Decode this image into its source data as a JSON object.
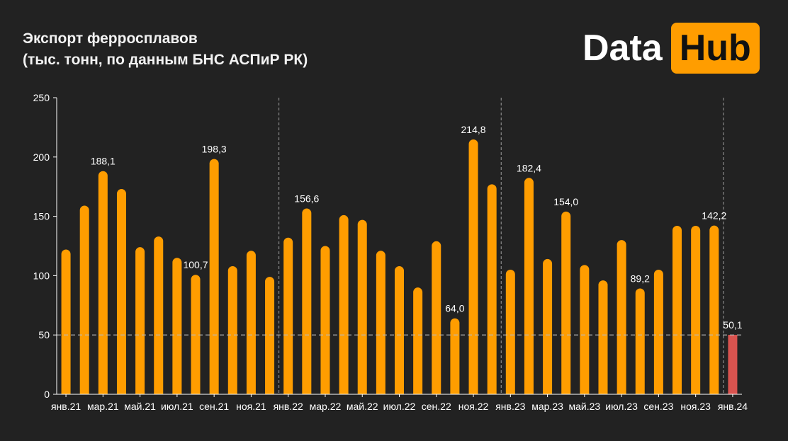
{
  "title_line1": "Экспорт ферросплавов",
  "title_line2": "(тыс.  тонн, по данным БНС АСПиР РК)",
  "logo": {
    "word": "Data",
    "box": "Hub"
  },
  "colors": {
    "background": "#222222",
    "bar": "#ff9d00",
    "highlight_bar": "#d9534f",
    "reference_line": "#bbbbbb",
    "text": "#ffffff",
    "axis": "#ffffff",
    "brand": "#ff9d00"
  },
  "chart_data": {
    "type": "bar",
    "title": "Экспорт ферросплавов",
    "subtitle": "(тыс.  тонн, по данным БНС АСПиР РК)",
    "ylim": [
      0,
      250
    ],
    "yticks": [
      0,
      50,
      100,
      150,
      200,
      250
    ],
    "grid": false,
    "reference_line": 50,
    "year_separators_before": [
      "янв.22",
      "янв.23",
      "янв.24"
    ],
    "categories": [
      "янв.21",
      "фев.21",
      "мар.21",
      "апр.21",
      "май.21",
      "июн.21",
      "июл.21",
      "авг.21",
      "сен.21",
      "окт.21",
      "ноя.21",
      "дек.21",
      "янв.22",
      "фев.22",
      "мар.22",
      "апр.22",
      "май.22",
      "июн.22",
      "июл.22",
      "авг.22",
      "сен.22",
      "окт.22",
      "ноя.22",
      "дек.22",
      "янв.23",
      "фев.23",
      "мар.23",
      "апр.23",
      "май.23",
      "июн.23",
      "июл.23",
      "авг.23",
      "сен.23",
      "окт.23",
      "ноя.23",
      "дек.23",
      "янв.24"
    ],
    "x_tick_labels": [
      "янв.21",
      "мар.21",
      "май.21",
      "июл.21",
      "сен.21",
      "ноя.21",
      "янв.22",
      "мар.22",
      "май.22",
      "июл.22",
      "сен.22",
      "ноя.22",
      "янв.23",
      "мар.23",
      "май.23",
      "июл.23",
      "сен.23",
      "ноя.23",
      "янв.24"
    ],
    "values": [
      122,
      159,
      188.1,
      173,
      124,
      133,
      115,
      100.7,
      198.3,
      108,
      121,
      99,
      132,
      156.6,
      125,
      151,
      147,
      121,
      108,
      90,
      129,
      64.0,
      214.8,
      177,
      105,
      182.4,
      114,
      154.0,
      109,
      96,
      130,
      89.2,
      105,
      142,
      142,
      142.2,
      50.1
    ],
    "data_labels": [
      {
        "category": "мар.21",
        "text": "188,1"
      },
      {
        "category": "авг.21",
        "text": "100,7"
      },
      {
        "category": "сен.21",
        "text": "198,3"
      },
      {
        "category": "фев.22",
        "text": "156,6"
      },
      {
        "category": "окт.22",
        "text": "64,0"
      },
      {
        "category": "ноя.22",
        "text": "214,8"
      },
      {
        "category": "фев.23",
        "text": "182,4"
      },
      {
        "category": "апр.23",
        "text": "154,0"
      },
      {
        "category": "авг.23",
        "text": "89,2"
      },
      {
        "category": "дек.23",
        "text": "142,2"
      },
      {
        "category": "янв.24",
        "text": "50,1"
      }
    ],
    "highlight_category": "янв.24"
  }
}
